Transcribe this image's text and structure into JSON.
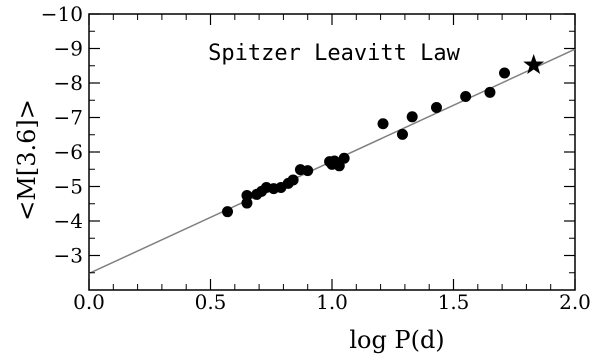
{
  "chart_data": {
    "type": "scatter",
    "title": "Spitzer Leavitt Law",
    "xlabel": "log P(d)",
    "ylabel": "<M[3.6]>",
    "xlim": [
      0.0,
      2.0
    ],
    "ylim": [
      -2.0,
      -10.0
    ],
    "y_inverted": true,
    "grid": false,
    "x_ticks": [
      {
        "value": 0.0,
        "label": "0.0"
      },
      {
        "value": 0.5,
        "label": "0.5"
      },
      {
        "value": 1.0,
        "label": "1.0"
      },
      {
        "value": 1.5,
        "label": "1.5"
      },
      {
        "value": 2.0,
        "label": "2.0"
      }
    ],
    "y_ticks": [
      {
        "value": -3,
        "label": "−3"
      },
      {
        "value": -4,
        "label": "−4"
      },
      {
        "value": -5,
        "label": "−5"
      },
      {
        "value": -6,
        "label": "−6"
      },
      {
        "value": -7,
        "label": "−7"
      },
      {
        "value": -8,
        "label": "−8"
      },
      {
        "value": -9,
        "label": "−9"
      },
      {
        "value": -10,
        "label": "−10"
      }
    ],
    "points": [
      {
        "x": 0.57,
        "y": -4.27
      },
      {
        "x": 0.65,
        "y": -4.52
      },
      {
        "x": 0.65,
        "y": -4.74
      },
      {
        "x": 0.69,
        "y": -4.77
      },
      {
        "x": 0.71,
        "y": -4.86
      },
      {
        "x": 0.73,
        "y": -4.97
      },
      {
        "x": 0.76,
        "y": -4.94
      },
      {
        "x": 0.79,
        "y": -4.97
      },
      {
        "x": 0.82,
        "y": -5.09
      },
      {
        "x": 0.84,
        "y": -5.19
      },
      {
        "x": 0.87,
        "y": -5.49
      },
      {
        "x": 0.9,
        "y": -5.46
      },
      {
        "x": 0.99,
        "y": -5.72
      },
      {
        "x": 1.0,
        "y": -5.64
      },
      {
        "x": 1.01,
        "y": -5.74
      },
      {
        "x": 1.03,
        "y": -5.6
      },
      {
        "x": 1.05,
        "y": -5.82
      },
      {
        "x": 1.21,
        "y": -6.82
      },
      {
        "x": 1.29,
        "y": -6.51
      },
      {
        "x": 1.33,
        "y": -7.02
      },
      {
        "x": 1.43,
        "y": -7.29
      },
      {
        "x": 1.55,
        "y": -7.61
      },
      {
        "x": 1.65,
        "y": -7.73
      },
      {
        "x": 1.71,
        "y": -8.29
      }
    ],
    "star_point": {
      "x": 1.83,
      "y": -8.52
    },
    "fit_line": {
      "x": [
        0.0,
        2.0
      ],
      "y": [
        -2.48,
        -8.98
      ],
      "color": "#808080"
    },
    "marker_color": "#000000"
  }
}
